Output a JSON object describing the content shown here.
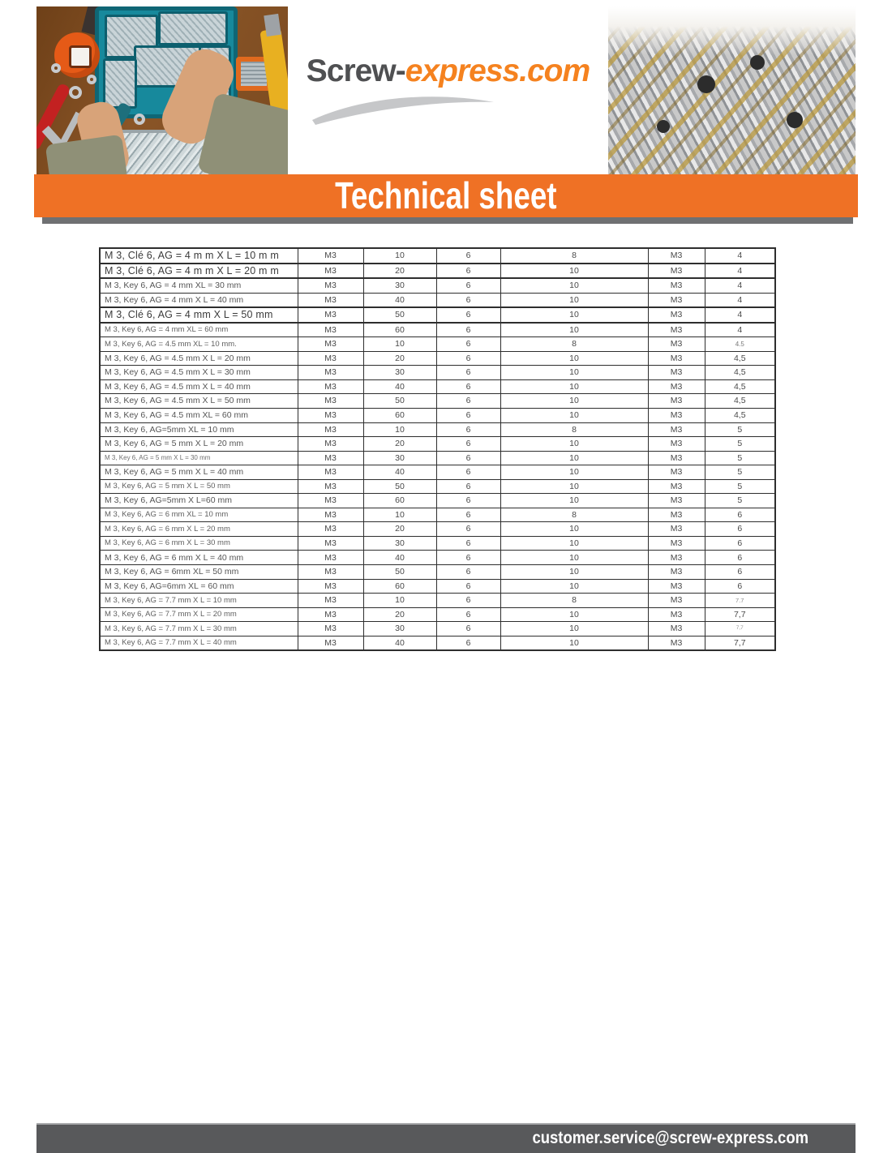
{
  "brand": {
    "name_dark": "Screw-",
    "name_orange": "express.com"
  },
  "banner": {
    "title": "Technical sheet"
  },
  "footer": {
    "email": "customer.service@screw-express.com"
  },
  "images": {
    "left_photo": "workbench with hands sorting screws into teal organizer box",
    "right_photo": "pile of silver and brass screws"
  },
  "colors": {
    "accent_orange": "#EF7125",
    "logo_orange": "#F5821F",
    "logo_gray": "#4F5052",
    "swoosh_gray": "#C6C7C9",
    "footer_gray": "#58595B",
    "table_border": "#2E2E2E"
  },
  "table": {
    "rows": [
      {
        "cells": [
          "M 3, Clé 6, AG = 4 m m X L = 10 m m",
          "M3",
          "10",
          "6",
          "8",
          "M3",
          "4"
        ],
        "size": "lg"
      },
      {
        "cells": [
          "M 3, Clé 6, AG = 4 m m X L = 20 m m",
          "M3",
          "20",
          "6",
          "10",
          "M3",
          "4"
        ],
        "size": "lg"
      },
      {
        "cells": [
          "M 3, Key 6, AG = 4 mm XL = 30 mm",
          "M3",
          "30",
          "6",
          "10",
          "M3",
          "4"
        ],
        "size": "md"
      },
      {
        "cells": [
          "M 3, Key 6, AG = 4 mm X L = 40 mm",
          "M3",
          "40",
          "6",
          "10",
          "M3",
          "4"
        ],
        "size": "md"
      },
      {
        "cells": [
          "M 3, Clé 6, AG = 4 mm X L = 50 mm",
          "M3",
          "50",
          "6",
          "10",
          "M3",
          "4"
        ],
        "size": "lg"
      },
      {
        "cells": [
          "M 3, Key 6, AG = 4 mm XL = 60 mm",
          "M3",
          "60",
          "6",
          "10",
          "M3",
          "4"
        ],
        "size": "sm"
      },
      {
        "cells": [
          "M 3, Key 6, AG = 4.5 mm XL = 10 mm.",
          "M3",
          "10",
          "6",
          "8",
          "M3",
          "4.5"
        ],
        "size": "sm",
        "last_size": "sm"
      },
      {
        "cells": [
          "M 3, Key 6, AG = 4.5 mm X L = 20 mm",
          "M3",
          "20",
          "6",
          "10",
          "M3",
          "4,5"
        ],
        "size": "md"
      },
      {
        "cells": [
          "M 3, Key 6, AG = 4.5 mm X L = 30 mm",
          "M3",
          "30",
          "6",
          "10",
          "M3",
          "4,5"
        ],
        "size": "md"
      },
      {
        "cells": [
          "M 3, Key 6, AG = 4.5 mm X L = 40 mm",
          "M3",
          "40",
          "6",
          "10",
          "M3",
          "4,5"
        ],
        "size": "md"
      },
      {
        "cells": [
          "M 3, Key 6, AG = 4.5 mm X L = 50 mm",
          "M3",
          "50",
          "6",
          "10",
          "M3",
          "4,5"
        ],
        "size": "md"
      },
      {
        "cells": [
          "M 3, Key 6, AG = 4.5 mm XL = 60 mm",
          "M3",
          "60",
          "6",
          "10",
          "M3",
          "4,5"
        ],
        "size": "md"
      },
      {
        "cells": [
          "M 3, Key 6, AG=5mm XL = 10 mm",
          "M3",
          "10",
          "6",
          "8",
          "M3",
          "5"
        ],
        "size": "md"
      },
      {
        "cells": [
          "M 3, Key 6, AG = 5 mm X L = 20 mm",
          "M3",
          "20",
          "6",
          "10",
          "M3",
          "5"
        ],
        "size": "md"
      },
      {
        "cells": [
          "M 3, Key 6, AG = 5 mm X L = 30 mm",
          "M3",
          "30",
          "6",
          "10",
          "M3",
          "5"
        ],
        "size": "xs"
      },
      {
        "cells": [
          "M 3, Key 6, AG = 5 mm X L = 40 mm",
          "M3",
          "40",
          "6",
          "10",
          "M3",
          "5"
        ],
        "size": "md"
      },
      {
        "cells": [
          "M 3, Key 6, AG = 5 mm X L = 50 mm",
          "M3",
          "50",
          "6",
          "10",
          "M3",
          "5"
        ],
        "size": "sm"
      },
      {
        "cells": [
          "M 3, Key 6, AG=5mm X L=60 mm",
          "M3",
          "60",
          "6",
          "10",
          "M3",
          "5"
        ],
        "size": "md"
      },
      {
        "cells": [
          "M 3, Key 6, AG = 6 mm XL = 10 mm",
          "M3",
          "10",
          "6",
          "8",
          "M3",
          "6"
        ],
        "size": "sm"
      },
      {
        "cells": [
          "M 3, Key 6, AG = 6 mm X L = 20 mm",
          "M3",
          "20",
          "6",
          "10",
          "M3",
          "6"
        ],
        "size": "sm"
      },
      {
        "cells": [
          "M 3, Key 6, AG = 6 mm X L = 30 mm",
          "M3",
          "30",
          "6",
          "10",
          "M3",
          "6"
        ],
        "size": "sm"
      },
      {
        "cells": [
          "M 3, Key 6, AG = 6 mm X L = 40 mm",
          "M3",
          "40",
          "6",
          "10",
          "M3",
          "6"
        ],
        "size": "md"
      },
      {
        "cells": [
          "M 3, Key 6, AG = 6mm XL = 50 mm",
          "M3",
          "50",
          "6",
          "10",
          "M3",
          "6"
        ],
        "size": "md"
      },
      {
        "cells": [
          "M 3, Key 6, AG=6mm XL = 60 mm",
          "M3",
          "60",
          "6",
          "10",
          "M3",
          "6"
        ],
        "size": "md"
      },
      {
        "cells": [
          "M 3, Key 6, AG = 7.7 mm X L = 10 mm",
          "M3",
          "10",
          "6",
          "8",
          "M3",
          "7.7"
        ],
        "size": "sm",
        "last_size": "xs"
      },
      {
        "cells": [
          "M 3, Key 6, AG = 7.7 mm X L = 20 mm",
          "M3",
          "20",
          "6",
          "10",
          "M3",
          "7,7"
        ],
        "size": "sm"
      },
      {
        "cells": [
          "M 3, Key 6, AG = 7.7 mm X L = 30 mm",
          "M3",
          "30",
          "6",
          "10",
          "M3",
          "7,7"
        ],
        "size": "sm",
        "last_size": "xxs"
      },
      {
        "cells": [
          "M 3, Key 6, AG = 7.7 mm X L = 40 mm",
          "M3",
          "40",
          "6",
          "10",
          "M3",
          "7,7"
        ],
        "size": "sm"
      }
    ]
  }
}
